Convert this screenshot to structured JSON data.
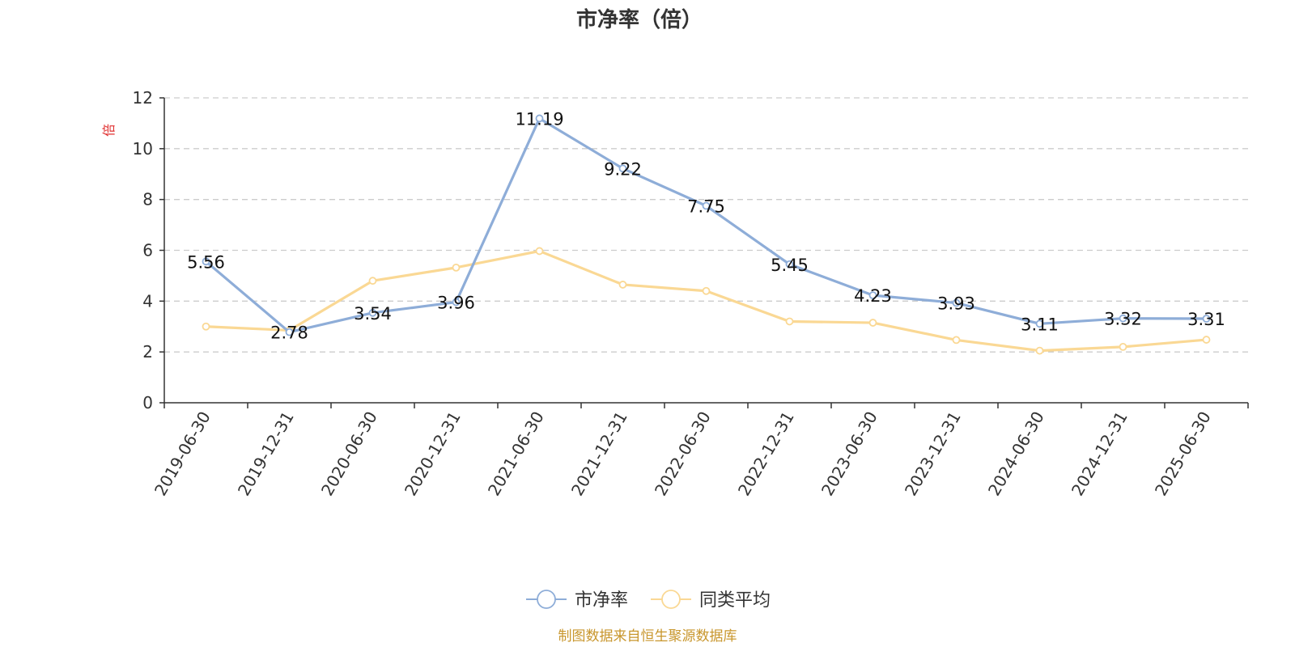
{
  "chart_data": {
    "type": "line",
    "title": "市净率（倍）",
    "ylabel": "倍",
    "categories": [
      "2019-06-30",
      "2019-12-31",
      "2020-06-30",
      "2020-12-31",
      "2021-06-30",
      "2021-12-31",
      "2022-06-30",
      "2022-12-31",
      "2023-06-30",
      "2023-12-31",
      "2024-06-30",
      "2024-12-31",
      "2025-06-30"
    ],
    "ylim": [
      0,
      12
    ],
    "yticks": [
      0,
      2,
      4,
      6,
      8,
      10,
      12
    ],
    "grid": true,
    "legend_position": "bottom-center",
    "series": [
      {
        "name": "市净率",
        "color": "#8eadd8",
        "values": [
          5.56,
          2.78,
          3.54,
          3.96,
          11.19,
          9.22,
          7.75,
          5.45,
          4.23,
          3.93,
          3.11,
          3.32,
          3.31
        ],
        "labels": [
          "5.56",
          "2.78",
          "3.54",
          "3.96",
          "11.19",
          "9.22",
          "7.75",
          "5.45",
          "4.23",
          "3.93",
          "3.11",
          "3.32",
          "3.31"
        ]
      },
      {
        "name": "同类平均",
        "color": "#fad894",
        "values": [
          3.0,
          2.85,
          4.8,
          5.32,
          5.97,
          4.65,
          4.4,
          3.2,
          3.15,
          2.47,
          2.05,
          2.2,
          2.48
        ]
      }
    ]
  },
  "source_note": "制图数据来自恒生聚源数据库"
}
